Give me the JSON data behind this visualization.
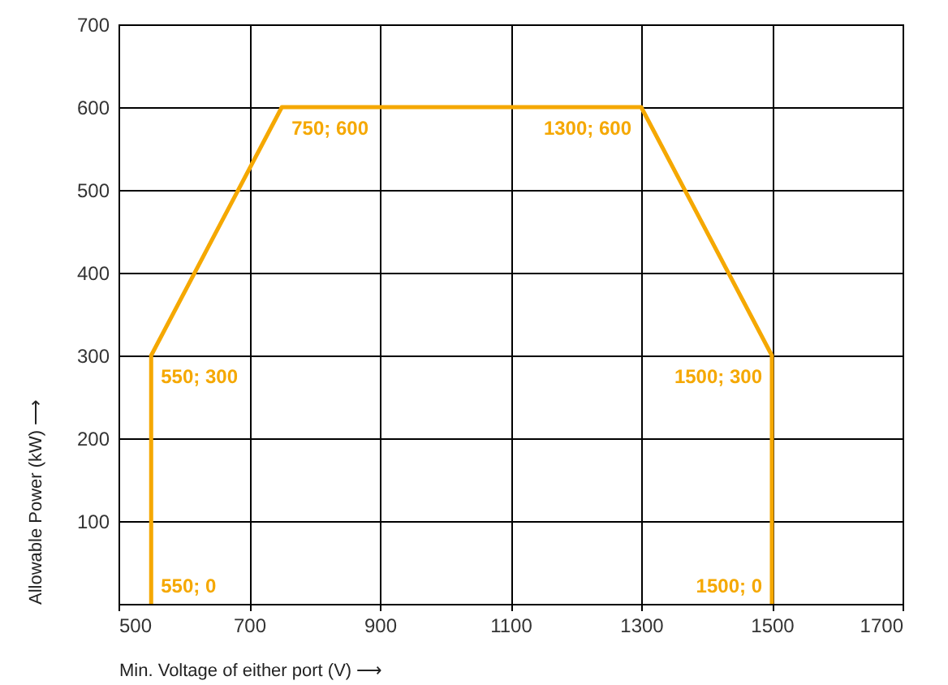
{
  "chart_data": {
    "type": "line",
    "xlabel": "Min. Voltage of either port (V) ⟶",
    "ylabel": "Allowable Power (kW) ⟶",
    "x": [
      550,
      550,
      750,
      1300,
      1500,
      1500
    ],
    "series": [
      {
        "color": "#f5a800",
        "values": [
          0,
          300,
          600,
          600,
          300,
          0
        ]
      }
    ],
    "xlim": [
      500,
      1700
    ],
    "xticks": [
      500,
      700,
      900,
      1100,
      1300,
      1500,
      1700
    ],
    "ylim": [
      0,
      700
    ],
    "yticks": [
      {
        "value": 0,
        "label": null
      },
      100,
      200,
      300,
      400,
      500,
      600,
      700
    ],
    "grid": true,
    "marker": "none",
    "line_style": "solid",
    "annotations": [
      {
        "text": "550; 0",
        "x": 550,
        "y": 0
      },
      {
        "text": "550; 300",
        "x": 550,
        "y": 300
      },
      {
        "text": "750; 600",
        "x": 750,
        "y": 600
      },
      {
        "text": "1300; 600",
        "x": 1300,
        "y": 600
      },
      {
        "text": "1500; 300",
        "x": 1500,
        "y": 300
      },
      {
        "text": "1500; 0",
        "x": 1500,
        "y": 0
      }
    ]
  }
}
